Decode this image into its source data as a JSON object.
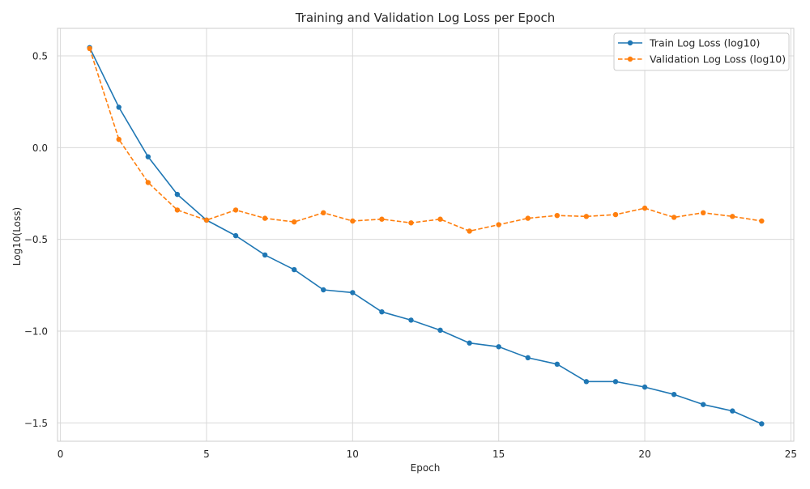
{
  "chart_data": {
    "type": "line",
    "title": "Training and Validation Log Loss per Epoch",
    "xlabel": "Epoch",
    "ylabel": "Log10(Loss)",
    "xlim": [
      -0.1,
      25.1
    ],
    "ylim": [
      -1.6,
      0.65
    ],
    "xticks": [
      0,
      5,
      10,
      15,
      20,
      25
    ],
    "xtick_labels": [
      "0",
      "5",
      "10",
      "15",
      "20",
      "25"
    ],
    "yticks": [
      0.5,
      0.0,
      -0.5,
      -1.0,
      -1.5
    ],
    "ytick_labels": [
      "0.5",
      "0.0",
      "−0.5",
      "−1.0",
      "−1.5"
    ],
    "grid": true,
    "legend_position": "top-right",
    "x": [
      1,
      2,
      3,
      4,
      5,
      6,
      7,
      8,
      9,
      10,
      11,
      12,
      13,
      14,
      15,
      16,
      17,
      18,
      19,
      20,
      21,
      22,
      23,
      24
    ],
    "series": [
      {
        "name": "Train Log Loss (log10)",
        "color": "#1f77b4",
        "line_style": "solid",
        "marker": "circle",
        "values": [
          0.545,
          0.22,
          -0.05,
          -0.255,
          -0.395,
          -0.48,
          -0.585,
          -0.665,
          -0.775,
          -0.79,
          -0.895,
          -0.94,
          -0.995,
          -1.065,
          -1.085,
          -1.145,
          -1.18,
          -1.275,
          -1.275,
          -1.305,
          -1.345,
          -1.4,
          -1.435,
          -1.505
        ]
      },
      {
        "name": "Validation Log Loss (log10)",
        "color": "#ff7f0e",
        "line_style": "dashed",
        "marker": "circle",
        "values": [
          0.54,
          0.045,
          -0.19,
          -0.34,
          -0.395,
          -0.34,
          -0.385,
          -0.405,
          -0.355,
          -0.4,
          -0.39,
          -0.41,
          -0.39,
          -0.455,
          -0.42,
          -0.385,
          -0.37,
          -0.375,
          -0.365,
          -0.33,
          -0.38,
          -0.355,
          -0.375,
          -0.4
        ]
      }
    ]
  }
}
